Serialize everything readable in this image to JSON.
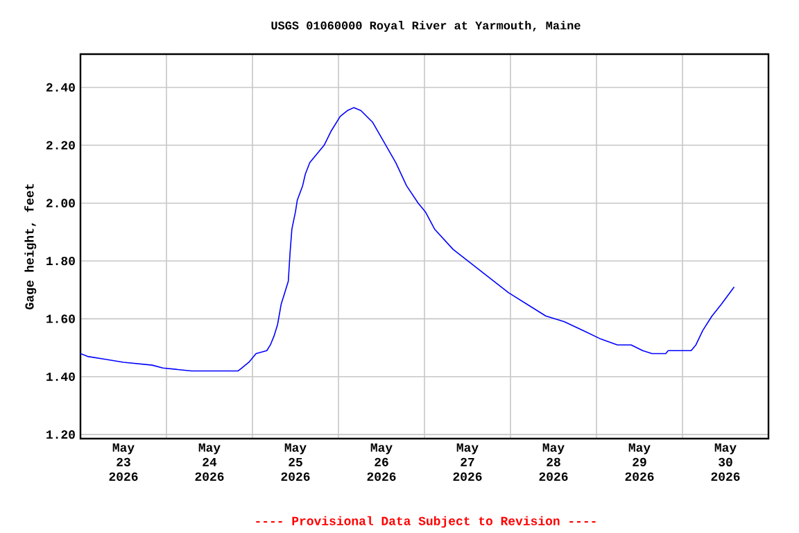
{
  "chart_data": {
    "type": "line",
    "title": "USGS 01060000 Royal River at Yarmouth, Maine",
    "ylabel": "Gage height, feet",
    "annotations": [
      "---- Provisional Data Subject to Revision ----"
    ],
    "grid": true,
    "xlim": [
      "2026-05-23T00:00",
      "2026-05-31T00:00"
    ],
    "ylim": [
      1.186,
      2.515
    ],
    "yticks": [
      {
        "value": 1.2,
        "label": "1.20"
      },
      {
        "value": 1.4,
        "label": "1.40"
      },
      {
        "value": 1.6,
        "label": "1.60"
      },
      {
        "value": 1.8,
        "label": "1.80"
      },
      {
        "value": 2.0,
        "label": "2.00"
      },
      {
        "value": 2.2,
        "label": "2.20"
      },
      {
        "value": 2.4,
        "label": "2.40"
      }
    ],
    "xticks": [
      {
        "value": "2026-05-23T00:00",
        "label": null
      },
      {
        "value": "2026-05-24T00:00",
        "label": null
      },
      {
        "value": "2026-05-25T00:00",
        "label": null
      },
      {
        "value": "2026-05-26T00:00",
        "label": null
      },
      {
        "value": "2026-05-27T00:00",
        "label": null
      },
      {
        "value": "2026-05-28T00:00",
        "label": null
      },
      {
        "value": "2026-05-29T00:00",
        "label": null
      },
      {
        "value": "2026-05-30T00:00",
        "label": null
      },
      {
        "value": "2026-05-31T00:00",
        "label": null
      },
      {
        "value": "2026-05-23T12:00",
        "label": "May 23 2026"
      },
      {
        "value": "2026-05-24T12:00",
        "label": "May 24 2026"
      },
      {
        "value": "2026-05-25T12:00",
        "label": "May 25 2026"
      },
      {
        "value": "2026-05-26T12:00",
        "label": "May 26 2026"
      },
      {
        "value": "2026-05-27T12:00",
        "label": "May 27 2026"
      },
      {
        "value": "2026-05-28T12:00",
        "label": "May 28 2026"
      },
      {
        "value": "2026-05-29T12:00",
        "label": "May 29 2026"
      },
      {
        "value": "2026-05-30T12:00",
        "label": "May 30 2026"
      }
    ],
    "series": [
      {
        "color": "#0000ff",
        "x": [
          "2026-05-23T00:00",
          "2026-05-23T02:00",
          "2026-05-23T07:00",
          "2026-05-23T12:00",
          "2026-05-23T20:00",
          "2026-05-23T23:00",
          "2026-05-24T07:00",
          "2026-05-24T20:00",
          "2026-05-24T21:00",
          "2026-05-24T23:00",
          "2026-05-25T01:00",
          "2026-05-25T04:00",
          "2026-05-25T05:00",
          "2026-05-25T06:00",
          "2026-05-25T07:00",
          "2026-05-25T08:00",
          "2026-05-25T09:00",
          "2026-05-25T10:00",
          "2026-05-25T10:30",
          "2026-05-25T11:00",
          "2026-05-25T12:00",
          "2026-05-25T12:30",
          "2026-05-25T14:00",
          "2026-05-25T14:45",
          "2026-05-25T16:00",
          "2026-05-25T18:00",
          "2026-05-25T20:00",
          "2026-05-25T22:00",
          "2026-05-26T00:30",
          "2026-05-26T02:30",
          "2026-05-26T04:15",
          "2026-05-26T06:15",
          "2026-05-26T09:30",
          "2026-05-26T12:45",
          "2026-05-26T16:00",
          "2026-05-26T19:00",
          "2026-05-26T22:15",
          "2026-05-27T00:15",
          "2026-05-27T02:50",
          "2026-05-27T08:00",
          "2026-05-27T13:10",
          "2026-05-27T18:20",
          "2026-05-27T23:30",
          "2026-05-28T04:40",
          "2026-05-28T09:50",
          "2026-05-28T15:00",
          "2026-05-28T20:10",
          "2026-05-29T01:15",
          "2026-05-29T05:50",
          "2026-05-29T09:40",
          "2026-05-29T12:55",
          "2026-05-29T15:30",
          "2026-05-29T19:20",
          "2026-05-29T20:00",
          "2026-05-29T22:35",
          "2026-05-29T23:15",
          "2026-05-30T02:25",
          "2026-05-30T03:45",
          "2026-05-30T05:40",
          "2026-05-30T08:15",
          "2026-05-30T10:50",
          "2026-05-30T14:25"
        ],
        "values": [
          1.48,
          1.47,
          1.46,
          1.45,
          1.44,
          1.43,
          1.42,
          1.42,
          1.43,
          1.45,
          1.48,
          1.49,
          1.51,
          1.54,
          1.58,
          1.65,
          1.69,
          1.73,
          1.83,
          1.91,
          1.97,
          2.01,
          2.06,
          2.1,
          2.14,
          2.17,
          2.2,
          2.25,
          2.3,
          2.32,
          2.33,
          2.32,
          2.28,
          2.21,
          2.14,
          2.06,
          2.0,
          1.97,
          1.91,
          1.84,
          1.79,
          1.74,
          1.69,
          1.65,
          1.61,
          1.59,
          1.56,
          1.53,
          1.51,
          1.51,
          1.49,
          1.48,
          1.48,
          1.49,
          1.49,
          1.49,
          1.49,
          1.51,
          1.56,
          1.61,
          1.65,
          1.71
        ]
      }
    ]
  }
}
